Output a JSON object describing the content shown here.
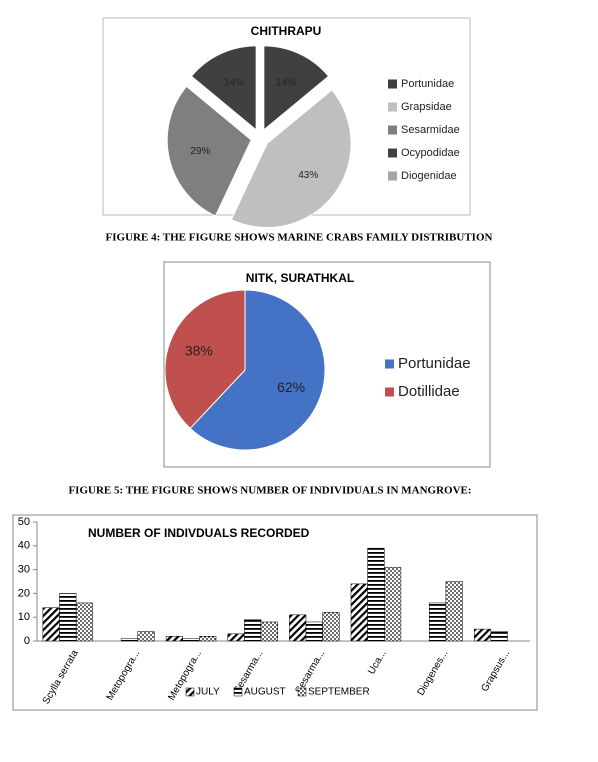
{
  "chart_data": [
    {
      "type": "pie",
      "title": "CHITHRAPU",
      "categories": [
        "Portunidae",
        "Grapsidae",
        "Sesarmidae",
        "Ocypodidae",
        "Diogenidae"
      ],
      "values": [
        14,
        43,
        29,
        14,
        0
      ],
      "value_labels": [
        "14%",
        "43%",
        "29%",
        "14%",
        null
      ],
      "colors": [
        "#3f3f3f",
        "#bfbfbf",
        "#7f7f7f",
        "#404040",
        "#a6a6a6"
      ],
      "legend": "right",
      "exploded": true
    },
    {
      "type": "pie",
      "title": "NITK, SURATHKAL",
      "categories": [
        "Portunidae",
        "Dotillidae"
      ],
      "values": [
        62,
        38
      ],
      "value_labels": [
        "62%",
        "38%"
      ],
      "colors": [
        "#4472c4",
        "#c0504d"
      ],
      "legend": "right",
      "exploded": false
    },
    {
      "type": "bar",
      "title": "NUMBER OF INDIVDUALS RECORDED",
      "categories": [
        "Scylla serrata",
        "Metopogra...",
        "Metopogra...",
        "Sesarma...",
        "Sesarma...",
        "Uca...",
        "Diogenes...",
        "Grapsus..."
      ],
      "series": [
        {
          "name": "JULY",
          "color": "#000000",
          "pattern": "diagonal",
          "values": [
            14,
            0,
            2,
            3,
            11,
            24,
            0,
            5
          ]
        },
        {
          "name": "AUGUST",
          "color": "#000000",
          "pattern": "horizontal",
          "values": [
            20,
            1,
            1,
            9,
            8,
            39,
            16,
            4
          ]
        },
        {
          "name": "SEPTEMBER",
          "color": "#000000",
          "pattern": "dots",
          "values": [
            16,
            4,
            2,
            8,
            12,
            31,
            25,
            0
          ]
        }
      ],
      "ylim": [
        0,
        50
      ],
      "yticks": [
        0,
        10,
        20,
        30,
        40,
        50
      ],
      "grid": false,
      "legend": "bottom"
    }
  ],
  "captions": [
    "FIGURE 4: THE FIGURE SHOWS MARINE CRABS FAMILY DISTRIBUTION",
    "FIGURE 5: THE FIGURE SHOWS NUMBER OF INDIVIDUALS IN MANGROVE:"
  ]
}
